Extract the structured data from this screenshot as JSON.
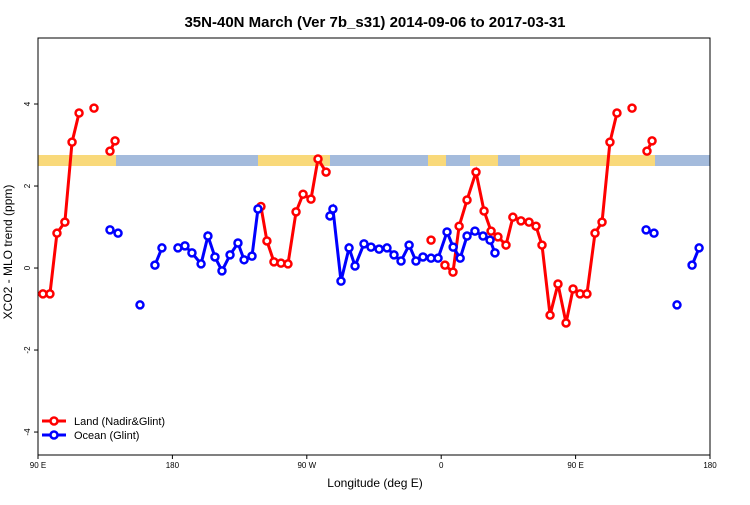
{
  "chart_data": {
    "type": "line",
    "title": "35N-40N March (Ver 7b_s31)   2014-09-06 to 2017-03-31",
    "x_label": "Longitude (deg E)",
    "y_label": "XCO2 - MLO trend (ppm)",
    "xlim": [
      90,
      540
    ],
    "ylim": [
      -4.56,
      5.61
    ],
    "xticks": [
      {
        "value": 90,
        "label": "90 E"
      },
      {
        "value": 180,
        "label": "180"
      },
      {
        "value": 270,
        "label": "90 W"
      },
      {
        "value": 360,
        "label": "0"
      },
      {
        "value": 450,
        "label": "90 E"
      },
      {
        "value": 540,
        "label": "180"
      }
    ],
    "yticks": [
      -4,
      -2,
      0,
      2,
      4
    ],
    "legend": "bottom-left",
    "series": [
      {
        "name": "Land (Nadir&Glint)",
        "color": "#ff0000",
        "x": [
          93.3,
          98,
          102.7,
          108,
          112.8,
          117.5,
          null,
          127.5,
          null,
          138.2,
          141.6,
          null,
          239.3,
          243.3,
          248,
          252.7,
          257.4,
          262.8,
          267.5,
          272.8,
          277.5,
          282.9,
          null,
          353.2,
          null,
          362.5,
          367.9,
          372,
          377.3,
          383.3,
          388.7,
          393.4,
          398,
          403.4,
          408,
          413.4,
          418.8,
          423.5,
          427.5,
          432.9,
          438.2,
          443.6,
          448.3,
          453,
          457.6,
          463,
          467.7,
          473,
          477.7,
          null,
          487.8,
          null,
          497.8,
          501.2
        ],
        "values": [
          -0.63,
          -0.63,
          0.85,
          1.12,
          3.07,
          3.78,
          null,
          3.9,
          null,
          2.85,
          3.1,
          null,
          1.5,
          0.66,
          0.15,
          0.12,
          0.1,
          1.37,
          1.8,
          1.68,
          2.66,
          2.34,
          null,
          0.68,
          null,
          0.07,
          -0.1,
          1.02,
          1.66,
          2.34,
          1.39,
          0.9,
          0.76,
          0.56,
          1.24,
          1.15,
          1.12,
          1.02,
          0.56,
          -1.15,
          -0.39,
          -1.34,
          -0.51,
          -0.63,
          -0.63,
          0.85,
          1.12,
          3.07,
          3.78,
          null,
          3.9,
          null,
          2.85,
          3.1
        ]
      },
      {
        "name": "Ocean (Glint)",
        "color": "#0000ff",
        "x": [
          138.2,
          143.6,
          null,
          158.3,
          null,
          168.3,
          173,
          null,
          183.7,
          188.4,
          193.1,
          199.2,
          203.8,
          208.5,
          213.2,
          218.6,
          223.9,
          228,
          233.3,
          237.3,
          null,
          285.5,
          287.5,
          292.9,
          298.3,
          302.3,
          308.3,
          313,
          318.4,
          323.7,
          328.4,
          333.1,
          338.5,
          343.1,
          347.8,
          353.2,
          357.9,
          363.9,
          368,
          372.7,
          377.3,
          382.6,
          388,
          392.7,
          396,
          null,
          497.2,
          502.5,
          null,
          517.9,
          null,
          528,
          532.7
        ],
        "values": [
          0.93,
          0.85,
          null,
          -0.9,
          null,
          0.07,
          0.49,
          null,
          0.49,
          0.54,
          0.37,
          0.1,
          0.78,
          0.27,
          -0.07,
          0.32,
          0.61,
          0.2,
          0.29,
          1.44,
          null,
          1.27,
          1.44,
          -0.32,
          0.49,
          0.05,
          0.59,
          0.51,
          0.46,
          0.49,
          0.32,
          0.17,
          0.56,
          0.17,
          0.27,
          0.24,
          0.24,
          0.88,
          0.51,
          0.24,
          0.78,
          0.9,
          0.78,
          0.68,
          0.37,
          null,
          0.93,
          0.85,
          null,
          -0.9,
          null,
          0.07,
          0.49
        ]
      }
    ]
  }
}
